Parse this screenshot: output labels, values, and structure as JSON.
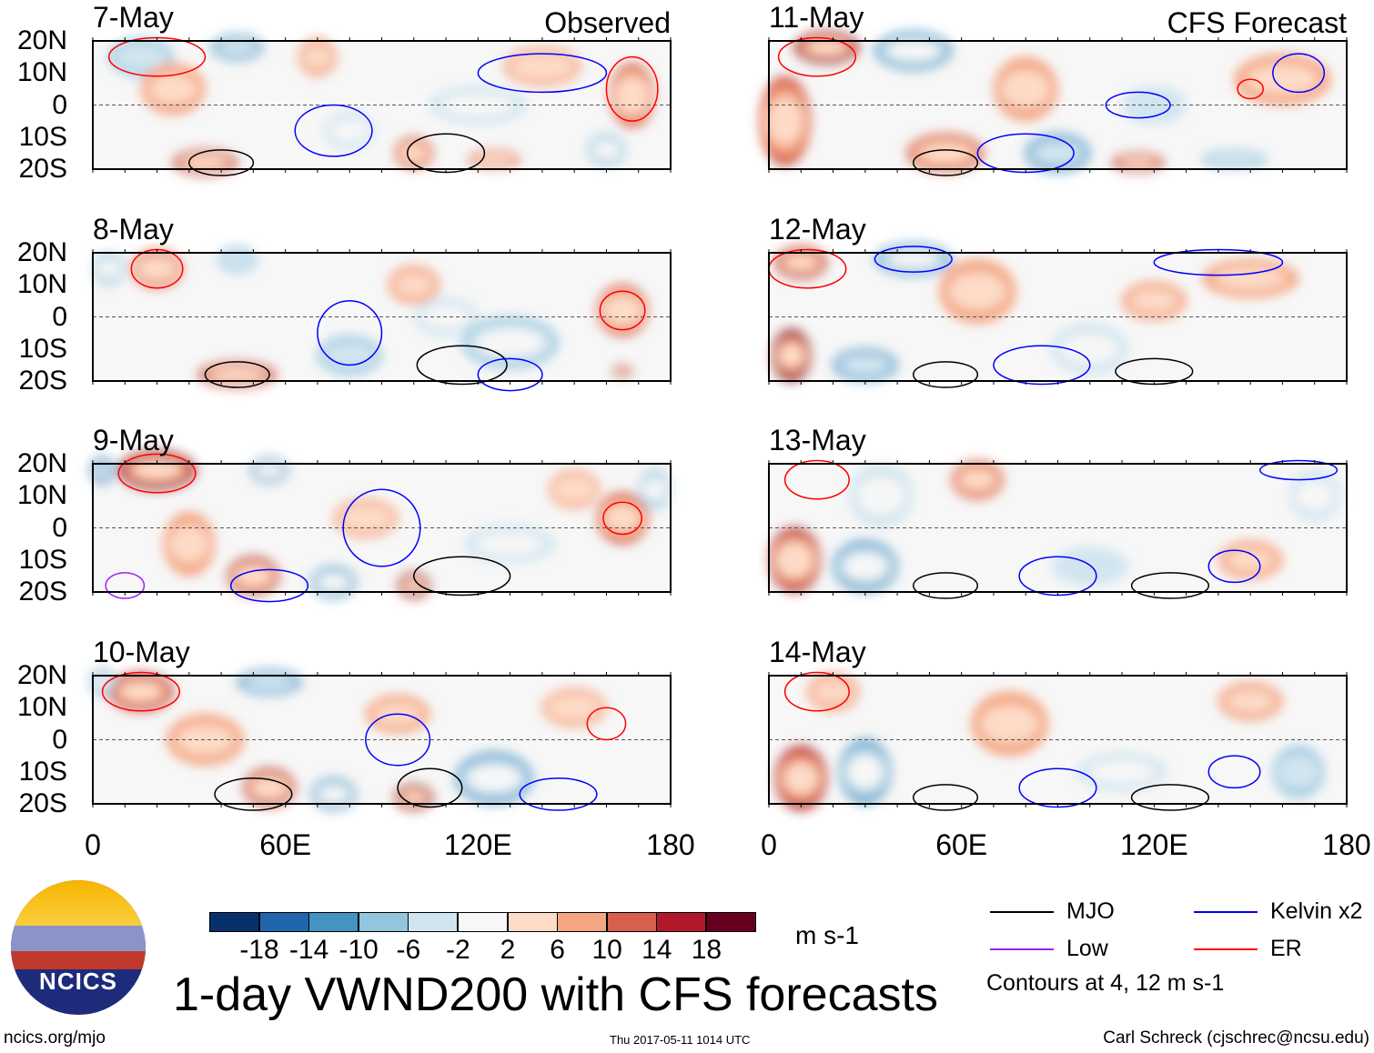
{
  "chart_data": {
    "type": "heatmap",
    "title": "1-day VWND200 with CFS forecasts",
    "units": "m s-1",
    "x_ticks": [
      "0",
      "60E",
      "120E",
      "180"
    ],
    "y_ticks": [
      "20N",
      "10N",
      "0",
      "10S",
      "20S"
    ],
    "xlim": [
      0,
      180
    ],
    "ylim": [
      -20,
      20
    ],
    "column_labels": {
      "left": "Observed",
      "right": "CFS Forecast"
    },
    "colorbar": {
      "levels": [
        "-18",
        "-14",
        "-10",
        "-6",
        "-2",
        "2",
        "6",
        "10",
        "14",
        "18"
      ],
      "colors": [
        "#08306b",
        "#2166ac",
        "#4393c3",
        "#92c5de",
        "#d1e5f0",
        "#f7f7f7",
        "#fddbc7",
        "#f4a582",
        "#d6604d",
        "#b2182b",
        "#67001f"
      ]
    },
    "legend": [
      {
        "label": "MJO",
        "color": "#000000"
      },
      {
        "label": "Kelvin x2",
        "color": "#0000ff"
      },
      {
        "label": "Low",
        "color": "#a020f0"
      },
      {
        "label": "ER",
        "color": "#ff0000"
      }
    ],
    "contour_note": "Contours at 4, 12 m s-1",
    "panels": [
      {
        "date": "7-May",
        "col": 0,
        "row": 0,
        "anomalies": [
          [
            15,
            15,
            10,
            6,
            -8
          ],
          [
            45,
            18,
            8,
            4,
            -12
          ],
          [
            35,
            -18,
            10,
            4,
            16
          ],
          [
            140,
            12,
            12,
            6,
            8
          ],
          [
            168,
            3,
            7,
            10,
            12
          ],
          [
            100,
            -15,
            6,
            5,
            10
          ],
          [
            125,
            -17,
            8,
            3,
            12
          ],
          [
            70,
            15,
            6,
            6,
            6
          ],
          [
            120,
            0,
            15,
            6,
            -6
          ],
          [
            160,
            -14,
            6,
            5,
            -10
          ],
          [
            80,
            -8,
            8,
            6,
            -6
          ],
          [
            25,
            5,
            10,
            8,
            6
          ]
        ],
        "contours": [
          [
            40,
            -18,
            10,
            4,
            "#000000"
          ],
          [
            110,
            -15,
            12,
            6,
            "#000000"
          ],
          [
            168,
            5,
            8,
            10,
            "#ff0000"
          ],
          [
            20,
            15,
            15,
            6,
            "#ff0000"
          ],
          [
            75,
            -8,
            12,
            8,
            "#0000ff"
          ],
          [
            140,
            10,
            20,
            6,
            "#0000ff"
          ]
        ]
      },
      {
        "date": "8-May",
        "col": 0,
        "row": 0,
        "anomalies": [
          [
            20,
            15,
            8,
            6,
            12
          ],
          [
            45,
            18,
            6,
            4,
            -8
          ],
          [
            45,
            -18,
            12,
            4,
            16
          ],
          [
            165,
            2,
            8,
            8,
            12
          ],
          [
            130,
            -8,
            15,
            8,
            -10
          ],
          [
            5,
            15,
            5,
            5,
            -10
          ],
          [
            80,
            -12,
            10,
            6,
            -8
          ],
          [
            110,
            0,
            10,
            6,
            -6
          ],
          [
            100,
            10,
            8,
            6,
            6
          ],
          [
            165,
            -17,
            3,
            2,
            18
          ]
        ],
        "contours": [
          [
            20,
            15,
            8,
            6,
            "#ff0000"
          ],
          [
            165,
            2,
            7,
            6,
            "#ff0000"
          ],
          [
            45,
            -18,
            10,
            4,
            "#000000"
          ],
          [
            115,
            -15,
            14,
            6,
            "#000000"
          ],
          [
            80,
            -5,
            10,
            10,
            "#0000ff"
          ],
          [
            130,
            -18,
            10,
            5,
            "#0000ff"
          ]
        ]
      },
      {
        "date": "9-May",
        "col": 0,
        "row": 0,
        "anomalies": [
          [
            20,
            18,
            12,
            6,
            18
          ],
          [
            3,
            18,
            4,
            4,
            -16
          ],
          [
            55,
            18,
            6,
            4,
            -14
          ],
          [
            50,
            -15,
            8,
            6,
            16
          ],
          [
            75,
            -17,
            7,
            5,
            -14
          ],
          [
            100,
            -18,
            5,
            4,
            18
          ],
          [
            85,
            3,
            10,
            6,
            8
          ],
          [
            165,
            3,
            8,
            8,
            10
          ],
          [
            130,
            -5,
            14,
            6,
            -6
          ],
          [
            150,
            12,
            8,
            6,
            8
          ],
          [
            175,
            12,
            5,
            6,
            -10
          ],
          [
            30,
            -5,
            8,
            10,
            6
          ]
        ],
        "contours": [
          [
            20,
            17,
            12,
            6,
            "#ff0000"
          ],
          [
            165,
            3,
            6,
            5,
            "#ff0000"
          ],
          [
            55,
            -18,
            12,
            5,
            "#0000ff"
          ],
          [
            90,
            0,
            12,
            12,
            "#0000ff"
          ],
          [
            115,
            -15,
            15,
            6,
            "#000000"
          ],
          [
            10,
            -18,
            6,
            4,
            "#a020f0"
          ]
        ]
      },
      {
        "date": "10-May",
        "col": 0,
        "row": 0,
        "anomalies": [
          [
            15,
            15,
            10,
            6,
            14
          ],
          [
            55,
            18,
            10,
            4,
            -12
          ],
          [
            3,
            18,
            4,
            4,
            -14
          ],
          [
            55,
            -15,
            8,
            6,
            16
          ],
          [
            75,
            -17,
            7,
            5,
            -14
          ],
          [
            100,
            -18,
            6,
            4,
            18
          ],
          [
            125,
            -12,
            12,
            8,
            -14
          ],
          [
            150,
            10,
            10,
            6,
            8
          ],
          [
            35,
            0,
            12,
            8,
            6
          ],
          [
            95,
            8,
            10,
            6,
            6
          ]
        ],
        "contours": [
          [
            15,
            15,
            12,
            6,
            "#ff0000"
          ],
          [
            160,
            5,
            6,
            5,
            "#ff0000"
          ],
          [
            50,
            -17,
            12,
            5,
            "#000000"
          ],
          [
            105,
            -15,
            10,
            6,
            "#000000"
          ],
          [
            95,
            0,
            10,
            8,
            "#0000ff"
          ],
          [
            145,
            -17,
            12,
            5,
            "#0000ff"
          ]
        ]
      },
      {
        "date": "11-May",
        "col": 1,
        "row": 0,
        "anomalies": [
          [
            18,
            18,
            10,
            5,
            18
          ],
          [
            45,
            17,
            12,
            6,
            -14
          ],
          [
            5,
            -5,
            8,
            14,
            10
          ],
          [
            55,
            -15,
            12,
            6,
            10
          ],
          [
            90,
            -15,
            10,
            6,
            -12
          ],
          [
            115,
            -18,
            8,
            3,
            14
          ],
          [
            145,
            -17,
            10,
            3,
            -8
          ],
          [
            80,
            5,
            10,
            10,
            6
          ],
          [
            160,
            8,
            15,
            8,
            6
          ],
          [
            120,
            0,
            10,
            6,
            -4
          ]
        ],
        "contours": [
          [
            15,
            15,
            12,
            6,
            "#ff0000"
          ],
          [
            80,
            -15,
            15,
            6,
            "#0000ff"
          ],
          [
            115,
            0,
            10,
            4,
            "#0000ff"
          ],
          [
            165,
            10,
            8,
            6,
            "#0000ff"
          ],
          [
            55,
            -18,
            10,
            4,
            "#000000"
          ],
          [
            150,
            5,
            4,
            3,
            "#ff0000"
          ]
        ]
      },
      {
        "date": "12-May",
        "col": 1,
        "row": 0,
        "anomalies": [
          [
            10,
            17,
            8,
            5,
            14
          ],
          [
            45,
            18,
            12,
            5,
            -14
          ],
          [
            7,
            -12,
            6,
            8,
            18
          ],
          [
            30,
            -15,
            10,
            5,
            -12
          ],
          [
            65,
            8,
            12,
            10,
            6
          ],
          [
            150,
            12,
            15,
            6,
            6
          ],
          [
            100,
            -10,
            12,
            8,
            -6
          ],
          [
            120,
            5,
            10,
            6,
            6
          ]
        ],
        "contours": [
          [
            12,
            15,
            12,
            6,
            "#ff0000"
          ],
          [
            45,
            18,
            12,
            4,
            "#0000ff"
          ],
          [
            85,
            -15,
            15,
            6,
            "#0000ff"
          ],
          [
            140,
            17,
            20,
            4,
            "#0000ff"
          ],
          [
            55,
            -18,
            10,
            4,
            "#000000"
          ],
          [
            120,
            -17,
            12,
            4,
            "#000000"
          ]
        ]
      },
      {
        "date": "13-May",
        "col": 1,
        "row": 0,
        "anomalies": [
          [
            8,
            -10,
            8,
            10,
            16
          ],
          [
            30,
            -12,
            10,
            8,
            -14
          ],
          [
            65,
            15,
            8,
            6,
            10
          ],
          [
            35,
            10,
            10,
            10,
            -6
          ],
          [
            150,
            -10,
            10,
            6,
            6
          ],
          [
            100,
            -12,
            12,
            6,
            -4
          ],
          [
            170,
            10,
            8,
            8,
            -6
          ]
        ],
        "contours": [
          [
            15,
            15,
            10,
            6,
            "#ff0000"
          ],
          [
            90,
            -15,
            12,
            6,
            "#0000ff"
          ],
          [
            145,
            -12,
            8,
            5,
            "#0000ff"
          ],
          [
            165,
            18,
            12,
            3,
            "#0000ff"
          ],
          [
            55,
            -18,
            10,
            4,
            "#000000"
          ],
          [
            125,
            -18,
            12,
            4,
            "#000000"
          ]
        ]
      },
      {
        "date": "14-May",
        "col": 1,
        "row": 0,
        "anomalies": [
          [
            10,
            -12,
            8,
            10,
            14
          ],
          [
            30,
            -10,
            8,
            10,
            -14
          ],
          [
            75,
            5,
            12,
            10,
            6
          ],
          [
            150,
            12,
            10,
            6,
            6
          ],
          [
            110,
            -10,
            14,
            6,
            -6
          ],
          [
            165,
            -10,
            8,
            8,
            -8
          ],
          [
            20,
            15,
            8,
            6,
            6
          ]
        ],
        "contours": [
          [
            15,
            15,
            10,
            6,
            "#ff0000"
          ],
          [
            90,
            -15,
            12,
            6,
            "#0000ff"
          ],
          [
            145,
            -10,
            8,
            5,
            "#0000ff"
          ],
          [
            55,
            -18,
            10,
            4,
            "#000000"
          ],
          [
            125,
            -18,
            12,
            4,
            "#000000"
          ]
        ]
      }
    ]
  },
  "footer": {
    "url": "ncics.org/mjo",
    "timestamp": "Thu 2017-05-11 1014 UTC",
    "author": "Carl Schreck (cjschrec@ncsu.edu)",
    "logo_text": "NCICS"
  }
}
